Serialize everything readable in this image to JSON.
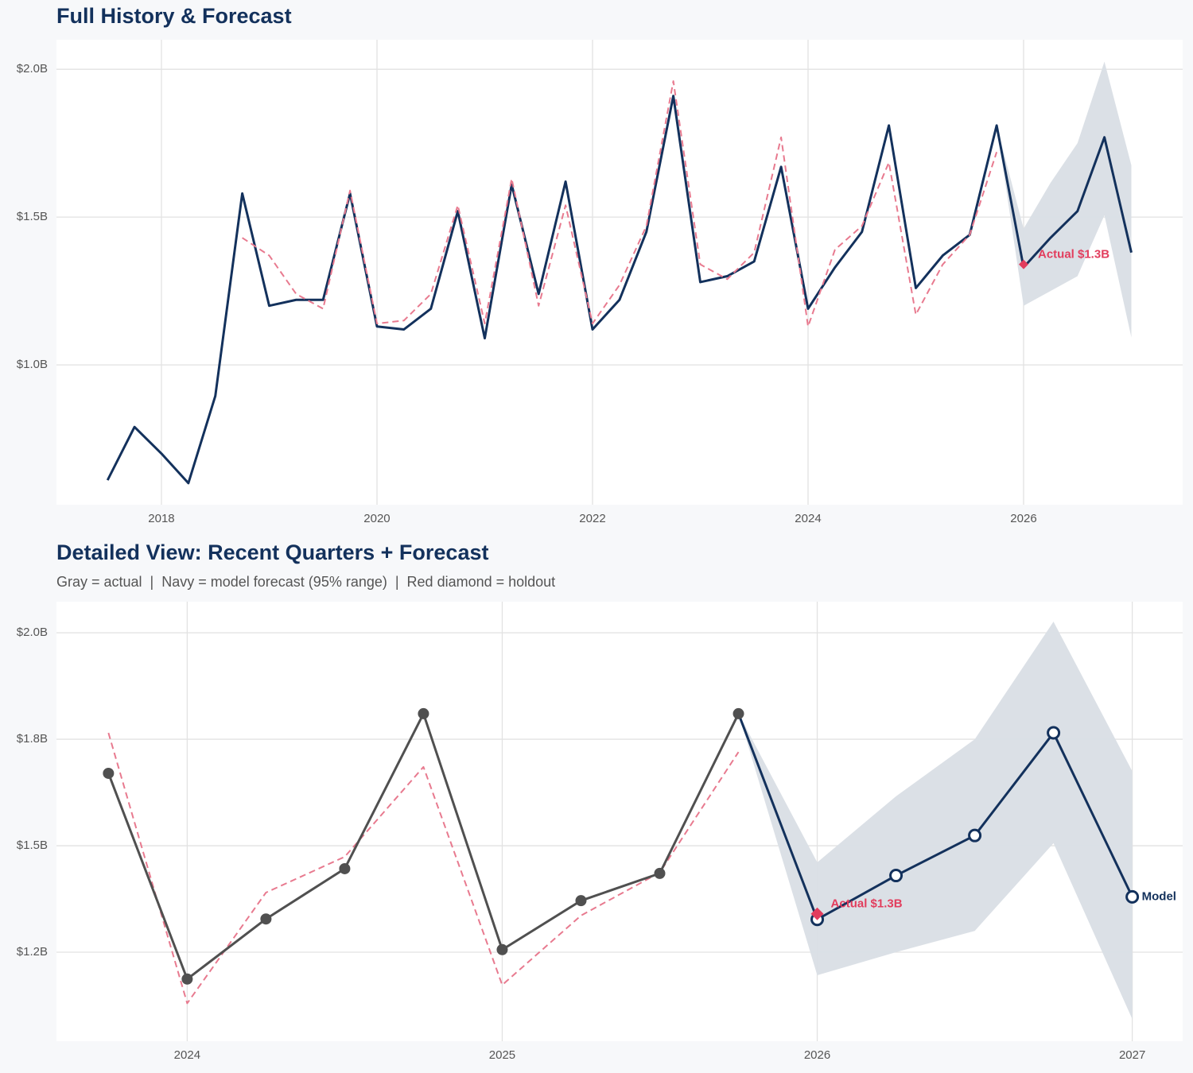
{
  "chart_data": [
    {
      "type": "line",
      "title": "Full History & Forecast",
      "x": [
        2017.5,
        2017.75,
        2018,
        2018.25,
        2018.5,
        2018.75,
        2019,
        2019.25,
        2019.5,
        2019.75,
        2020,
        2020.25,
        2020.5,
        2020.75,
        2021,
        2021.25,
        2021.5,
        2021.75,
        2022,
        2022.25,
        2022.5,
        2022.75,
        2023,
        2023.25,
        2023.5,
        2023.75,
        2024,
        2024.25,
        2024.5,
        2024.75,
        2025,
        2025.25,
        2025.5,
        2025.75,
        2026,
        2026.25,
        2026.5,
        2026.75,
        2027
      ],
      "series": [
        {
          "color": "#13315c",
          "dash": false,
          "markers": false,
          "values": [
            0.61,
            0.79,
            0.7,
            0.6,
            0.895,
            1.58,
            1.2,
            1.22,
            1.22,
            1.58,
            1.13,
            1.12,
            1.19,
            1.52,
            1.09,
            1.61,
            1.24,
            1.62,
            1.12,
            1.22,
            1.45,
            1.91,
            1.28,
            1.3,
            1.35,
            1.67,
            1.19,
            1.33,
            1.45,
            1.81,
            1.26,
            1.37,
            1.44,
            1.81,
            1.33,
            1.43,
            1.52,
            1.77,
            1.38
          ]
        },
        {
          "color": "#e87a8f",
          "dash": true,
          "markers": false,
          "values": [
            null,
            null,
            null,
            null,
            null,
            1.43,
            1.37,
            1.24,
            1.19,
            1.59,
            1.14,
            1.15,
            1.24,
            1.54,
            1.14,
            1.63,
            1.2,
            1.54,
            1.14,
            1.27,
            1.47,
            1.96,
            1.34,
            1.29,
            1.38,
            1.77,
            1.13,
            1.39,
            1.47,
            1.685,
            1.17,
            1.34,
            1.44,
            1.72,
            null,
            null,
            null,
            null,
            null
          ]
        }
      ],
      "band": {
        "color": "#d9dee5",
        "lower": [
          null,
          null,
          null,
          null,
          null,
          null,
          null,
          null,
          null,
          null,
          null,
          null,
          null,
          null,
          null,
          null,
          null,
          null,
          null,
          null,
          null,
          null,
          null,
          null,
          null,
          null,
          null,
          null,
          null,
          null,
          null,
          null,
          null,
          1.81,
          1.2,
          1.25,
          1.3,
          1.506,
          1.093
        ],
        "upper": [
          null,
          null,
          null,
          null,
          null,
          null,
          null,
          null,
          null,
          null,
          null,
          null,
          null,
          null,
          null,
          null,
          null,
          null,
          null,
          null,
          null,
          null,
          null,
          null,
          null,
          null,
          null,
          null,
          null,
          null,
          null,
          null,
          null,
          1.81,
          1.461,
          1.616,
          1.75,
          2.026,
          1.675
        ]
      },
      "holdout": {
        "x": 2026,
        "value": 1.34,
        "label": "Actual $1.3B",
        "color": "#e23d5d"
      },
      "xlim": [
        2017.026,
        2027.476
      ],
      "xticks": [
        2018,
        2020,
        2022,
        2024,
        2026
      ],
      "ylim": [
        0.527,
        2.1
      ],
      "yticks": [
        {
          "value": 1.0,
          "label": "$1.0B"
        },
        {
          "value": 1.5,
          "label": "$1.5B"
        },
        {
          "value": 2.0,
          "label": "$2.0B"
        }
      ],
      "grid": true
    },
    {
      "type": "line",
      "title": "Detailed View: Recent Quarters + Forecast",
      "subtitle": "Gray = actual  |  Navy = model forecast (95% range)  |  Red diamond = holdout",
      "x": [
        2023.75,
        2024,
        2024.25,
        2024.5,
        2024.75,
        2025,
        2025.25,
        2025.5,
        2025.75,
        2026,
        2026.25,
        2026.5,
        2026.75,
        2027
      ],
      "series": [
        {
          "color": "#e87a8f",
          "dash": true,
          "markers": false,
          "values": [
            1.765,
            1.13,
            1.39,
            1.474,
            1.685,
            1.173,
            1.336,
            1.437,
            1.72,
            null,
            null,
            null,
            null,
            null
          ]
        },
        {
          "color": "#505050",
          "dash": false,
          "markers": "filled",
          "values": [
            1.67,
            1.187,
            1.328,
            1.446,
            1.81,
            1.256,
            1.371,
            1.435,
            1.81,
            null,
            null,
            null,
            null,
            null
          ]
        },
        {
          "color": "#13315c",
          "dash": false,
          "markers": "open",
          "end_label": "Model",
          "values": [
            null,
            null,
            null,
            null,
            null,
            null,
            null,
            null,
            1.81,
            1.327,
            1.43,
            1.524,
            1.765,
            1.38
          ]
        }
      ],
      "band": {
        "color": "#d9dee5",
        "lower": [
          null,
          null,
          null,
          null,
          null,
          null,
          null,
          null,
          1.81,
          1.196,
          1.25,
          1.3,
          1.506,
          1.093
        ],
        "upper": [
          null,
          null,
          null,
          null,
          null,
          null,
          null,
          null,
          1.81,
          1.461,
          1.616,
          1.75,
          2.026,
          1.675
        ]
      },
      "holdout": {
        "x": 2026,
        "value": 1.34,
        "label": "Actual $1.3B",
        "color": "#e23d5d"
      },
      "xlim": [
        2023.585,
        2027.16
      ],
      "xticks": [
        2024,
        2025,
        2026,
        2027
      ],
      "ylim": [
        1.041,
        2.073
      ],
      "yticks": [
        {
          "value": 1.25,
          "label": "$1.2B"
        },
        {
          "value": 1.5,
          "label": "$1.5B"
        },
        {
          "value": 1.75,
          "label": "$1.8B"
        },
        {
          "value": 2.0,
          "label": "$2.0B"
        }
      ],
      "grid": true
    }
  ]
}
